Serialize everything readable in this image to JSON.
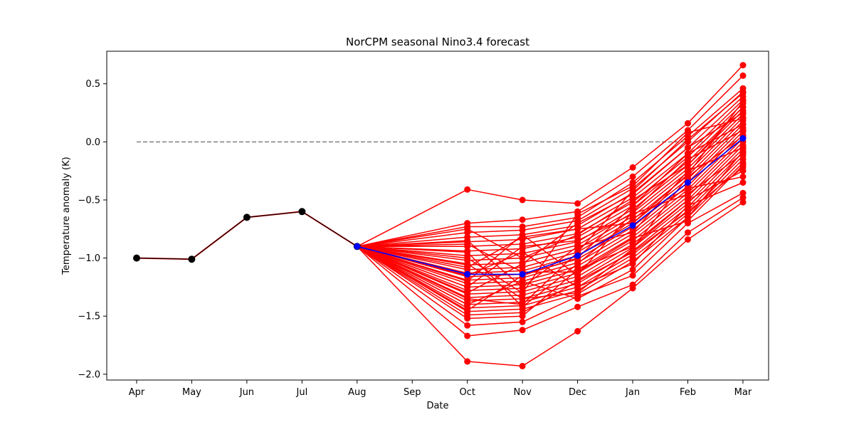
{
  "chart_data": {
    "type": "line",
    "title": "NorCPM seasonal Nino3.4 forecast",
    "xlabel": "Date",
    "ylabel": "Temperature anomaly (K)",
    "categories": [
      "Apr",
      "May",
      "Jun",
      "Jul",
      "Aug",
      "Sep",
      "Oct",
      "Nov",
      "Dec",
      "Jan",
      "Feb",
      "Mar"
    ],
    "ylim": [
      -2.05,
      0.78
    ],
    "yticks": [
      0.5,
      0.0,
      -0.5,
      -1.0,
      -1.5,
      -2.0
    ],
    "ytick_labels": [
      "0.5",
      "0.0",
      "−0.5",
      "−1.0",
      "−1.5",
      "−2.0"
    ],
    "grid": false,
    "observed": {
      "color": "#000000",
      "x": [
        "Apr",
        "May",
        "Jun",
        "Jul",
        "Aug"
      ],
      "values": [
        -1.0,
        -1.01,
        -0.65,
        -0.6,
        -0.9
      ]
    },
    "zero_line": {
      "y": 0.0,
      "x_from": "Apr",
      "x_to": "Mar",
      "color": "#808080",
      "style": "dashed"
    },
    "ensemble_mean": {
      "color": "#0000ff",
      "x": [
        "Aug",
        "Oct",
        "Nov",
        "Dec",
        "Jan",
        "Feb",
        "Mar"
      ],
      "values": [
        -0.9,
        -1.14,
        -1.14,
        -0.98,
        -0.72,
        -0.35,
        0.03
      ]
    },
    "members": {
      "color": "#ff0000",
      "x": [
        "Aug",
        "Oct",
        "Nov",
        "Dec",
        "Jan",
        "Feb",
        "Mar"
      ],
      "series": [
        [
          -0.9,
          -0.41,
          -0.5,
          -0.53,
          -0.22,
          0.16,
          0.66
        ],
        [
          -0.9,
          -1.89,
          -1.93,
          -1.63,
          -1.26,
          -0.84,
          -0.52
        ],
        [
          -0.9,
          -1.67,
          -1.62,
          -1.42,
          -1.23,
          -0.78,
          -0.48
        ],
        [
          -0.9,
          -1.58,
          -1.55,
          -1.33,
          -1.15,
          -0.7,
          -0.44
        ],
        [
          -0.9,
          -0.7,
          -0.67,
          -0.6,
          -0.3,
          0.1,
          0.57
        ],
        [
          -0.9,
          -0.73,
          -0.73,
          -0.65,
          -0.35,
          0.05,
          0.46
        ],
        [
          -0.9,
          -0.78,
          -0.76,
          -0.68,
          -0.4,
          0.0,
          0.43
        ],
        [
          -0.9,
          -0.82,
          -0.8,
          -0.72,
          -0.44,
          -0.05,
          0.39
        ],
        [
          -0.9,
          -0.86,
          -0.84,
          -0.75,
          -0.48,
          -0.1,
          0.36
        ],
        [
          -0.9,
          -0.9,
          -0.88,
          -0.79,
          -0.52,
          -0.13,
          0.33
        ],
        [
          -0.9,
          -0.94,
          -0.92,
          -0.82,
          -0.55,
          -0.17,
          0.3
        ],
        [
          -0.9,
          -0.98,
          -0.96,
          -0.86,
          -0.58,
          -0.2,
          0.27
        ],
        [
          -0.9,
          -1.02,
          -1.0,
          -0.89,
          -0.61,
          -0.23,
          0.24
        ],
        [
          -0.9,
          -1.06,
          -1.04,
          -0.92,
          -0.64,
          -0.26,
          0.21
        ],
        [
          -0.9,
          -1.1,
          -1.08,
          -0.95,
          -0.67,
          -0.29,
          0.18
        ],
        [
          -0.9,
          -1.13,
          -1.11,
          -0.98,
          -0.7,
          -0.32,
          0.15
        ],
        [
          -0.9,
          -1.16,
          -1.14,
          -1.01,
          -0.73,
          -0.35,
          0.12
        ],
        [
          -0.9,
          -1.19,
          -1.17,
          -1.04,
          -0.76,
          -0.38,
          0.09
        ],
        [
          -0.9,
          -1.22,
          -1.2,
          -1.07,
          -0.79,
          -0.41,
          0.06
        ],
        [
          -0.9,
          -1.25,
          -1.23,
          -1.1,
          -0.82,
          -0.44,
          0.03
        ],
        [
          -0.9,
          -1.28,
          -1.26,
          -1.13,
          -0.85,
          -0.47,
          0.0
        ],
        [
          -0.9,
          -1.31,
          -1.29,
          -1.16,
          -0.88,
          -0.5,
          -0.03
        ],
        [
          -0.9,
          -1.34,
          -1.32,
          -1.19,
          -0.91,
          -0.53,
          -0.06
        ],
        [
          -0.9,
          -1.37,
          -1.35,
          -1.22,
          -0.94,
          -0.56,
          -0.09
        ],
        [
          -0.9,
          -1.4,
          -1.38,
          -1.25,
          -0.97,
          -0.59,
          -0.12
        ],
        [
          -0.9,
          -1.43,
          -1.41,
          -1.28,
          -1.0,
          -0.62,
          -0.15
        ],
        [
          -0.9,
          -1.46,
          -1.44,
          -1.31,
          -1.03,
          -0.65,
          -0.18
        ],
        [
          -0.9,
          -1.49,
          -1.47,
          -1.2,
          -0.95,
          -0.6,
          -0.22
        ],
        [
          -0.9,
          -1.52,
          -1.5,
          -1.1,
          -0.9,
          -0.5,
          -0.25
        ],
        [
          -0.9,
          -1.0,
          -1.3,
          -0.62,
          -0.38,
          0.08,
          0.2
        ],
        [
          -0.9,
          -1.2,
          -0.8,
          -1.15,
          -0.6,
          -0.15,
          0.1
        ],
        [
          -0.9,
          -0.85,
          -1.25,
          -0.9,
          -0.78,
          -0.25,
          -0.05
        ],
        [
          -0.9,
          -1.3,
          -1.05,
          -0.7,
          -0.45,
          -0.05,
          0.25
        ],
        [
          -0.9,
          -0.95,
          -1.42,
          -1.05,
          -0.66,
          -0.4,
          -0.3
        ],
        [
          -0.9,
          -1.15,
          -0.95,
          -1.25,
          -1.05,
          -0.55,
          -0.35
        ],
        [
          -0.9,
          -0.75,
          -1.0,
          -0.8,
          -0.5,
          -0.2,
          0.3
        ],
        [
          -0.9,
          -1.45,
          -1.15,
          -1.0,
          -0.55,
          -0.1,
          0.15
        ],
        [
          -0.9,
          -1.05,
          -1.35,
          -1.3,
          -0.92,
          -0.3,
          0.05
        ],
        [
          -0.9,
          -1.25,
          -0.9,
          -0.85,
          -0.62,
          -0.45,
          -0.1
        ],
        [
          -0.9,
          -0.88,
          -1.12,
          -1.12,
          -0.83,
          -0.68,
          -0.2
        ],
        [
          -0.9,
          -1.35,
          -1.4,
          -0.95,
          -0.42,
          0.02,
          0.42
        ],
        [
          -0.9,
          -1.08,
          -0.82,
          -0.75,
          -0.7,
          -0.28,
          0.35
        ],
        [
          -0.9,
          -1.4,
          -1.2,
          -1.35,
          -1.1,
          -0.65,
          -0.08
        ]
      ]
    }
  }
}
